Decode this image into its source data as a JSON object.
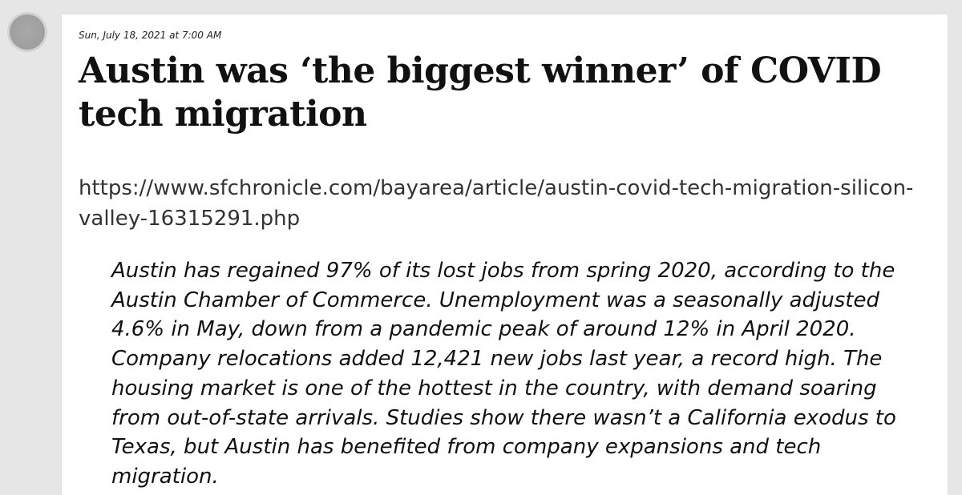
{
  "post": {
    "timestamp": "Sun, July 18, 2021 at 7:00 AM",
    "title": "Austin was ‘the biggest winner’ of COVID tech migration",
    "url": "https://www.sfchronicle.com/bayarea/article/austin-covid-tech-migration-silicon-valley-16315291.php",
    "quote": "Austin has regained 97% of its lost jobs from spring 2020, according to the Austin Chamber of Commerce. Unemployment was a seasonally adjusted 4.6% in May, down from a pandemic peak of around 12% in April 2020. Company relocations added 12,421 new jobs last year, a record high. The housing market is one of the hottest in the country, with demand soaring from out-of-state arrivals. Studies show there wasn’t a California exodus to Texas, but Austin has benefited from company expansions and tech migration."
  }
}
